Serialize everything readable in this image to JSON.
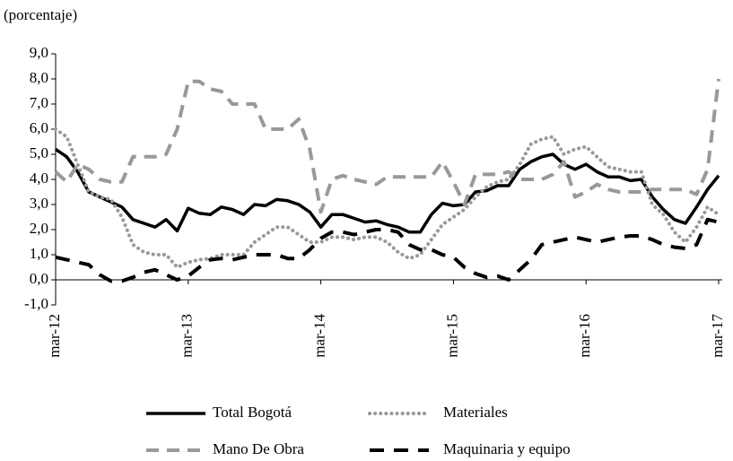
{
  "chart_data": {
    "type": "line",
    "unit_label": "(porcentaje)",
    "categories": [
      "mar-12",
      null,
      null,
      null,
      null,
      null,
      null,
      null,
      null,
      null,
      null,
      null,
      "mar-13",
      null,
      null,
      null,
      null,
      null,
      null,
      null,
      null,
      null,
      null,
      null,
      "mar-14",
      null,
      null,
      null,
      null,
      null,
      null,
      null,
      null,
      null,
      null,
      null,
      "mar-15",
      null,
      null,
      null,
      null,
      null,
      null,
      null,
      null,
      null,
      null,
      null,
      "mar-16",
      null,
      null,
      null,
      null,
      null,
      null,
      null,
      null,
      null,
      null,
      null,
      "mar-17"
    ],
    "ylim": [
      -1,
      9
    ],
    "yticks": [
      {
        "value": -1,
        "label": "-1,0"
      },
      {
        "value": 0,
        "label": "0,0"
      },
      {
        "value": 1,
        "label": "1,0"
      },
      {
        "value": 2,
        "label": "2,0"
      },
      {
        "value": 3,
        "label": "3,0"
      },
      {
        "value": 4,
        "label": "4,0"
      },
      {
        "value": 5,
        "label": "5,0"
      },
      {
        "value": 6,
        "label": "6,0"
      },
      {
        "value": 7,
        "label": "7,0"
      },
      {
        "value": 8,
        "label": "8,0"
      },
      {
        "value": 9,
        "label": "9,0"
      }
    ],
    "grid": false,
    "series": [
      {
        "name": "Total Bogotá",
        "color": "#000000",
        "style": "solid",
        "values": [
          5.2,
          4.9,
          4.3,
          3.5,
          3.3,
          3.1,
          2.9,
          2.4,
          2.25,
          2.1,
          2.4,
          1.95,
          2.85,
          2.65,
          2.6,
          2.9,
          2.8,
          2.6,
          3.0,
          2.95,
          3.2,
          3.15,
          3.0,
          2.7,
          2.1,
          2.6,
          2.6,
          2.45,
          2.3,
          2.35,
          2.2,
          2.1,
          1.9,
          1.9,
          2.6,
          3.05,
          2.95,
          3.0,
          3.5,
          3.55,
          3.75,
          3.75,
          4.4,
          4.7,
          4.9,
          5.0,
          4.6,
          4.4,
          4.6,
          4.3,
          4.1,
          4.1,
          3.95,
          4.0,
          3.3,
          2.8,
          2.4,
          2.25,
          2.9,
          3.6,
          4.15
        ]
      },
      {
        "name": "Materiales",
        "color": "#999999",
        "style": "dotted",
        "values": [
          6.0,
          5.7,
          4.6,
          3.5,
          3.3,
          3.2,
          2.5,
          1.4,
          1.1,
          1.0,
          1.0,
          0.5,
          0.7,
          0.8,
          0.85,
          1.0,
          1.0,
          1.0,
          1.5,
          1.8,
          2.1,
          2.1,
          1.8,
          1.5,
          1.5,
          1.7,
          1.7,
          1.6,
          1.7,
          1.7,
          1.5,
          1.1,
          0.85,
          1.0,
          1.6,
          2.2,
          2.5,
          2.8,
          3.3,
          3.7,
          3.9,
          4.0,
          4.6,
          5.4,
          5.6,
          5.7,
          5.0,
          5.2,
          5.3,
          4.9,
          4.5,
          4.4,
          4.3,
          4.3,
          3.0,
          2.6,
          1.9,
          1.5,
          2.1,
          2.9,
          2.6
        ]
      },
      {
        "name": "Mano De Obra",
        "color": "#999999",
        "style": "dashed",
        "values": [
          4.3,
          3.9,
          4.6,
          4.4,
          4.0,
          3.9,
          3.9,
          4.9,
          4.9,
          4.9,
          5.0,
          6.0,
          7.9,
          7.9,
          7.6,
          7.5,
          7.0,
          7.0,
          7.0,
          6.0,
          6.0,
          6.0,
          6.4,
          5.2,
          2.7,
          4.0,
          4.15,
          4.0,
          3.9,
          3.8,
          4.1,
          4.1,
          4.1,
          4.1,
          4.1,
          4.7,
          3.9,
          3.0,
          4.2,
          4.2,
          4.2,
          4.3,
          4.0,
          4.0,
          4.0,
          4.2,
          4.7,
          3.3,
          3.5,
          3.8,
          3.6,
          3.5,
          3.5,
          3.5,
          3.6,
          3.6,
          3.6,
          3.6,
          3.4,
          4.4,
          8.0
        ]
      },
      {
        "name": "Maquinaria y equipo",
        "color": "#000000",
        "style": "dashed",
        "values": [
          0.9,
          0.8,
          0.7,
          0.6,
          0.2,
          -0.05,
          -0.05,
          0.1,
          0.3,
          0.4,
          0.2,
          0.0,
          0.15,
          0.5,
          0.8,
          0.85,
          0.8,
          0.9,
          1.0,
          1.0,
          1.0,
          0.85,
          0.85,
          1.2,
          1.65,
          1.9,
          1.9,
          1.8,
          1.9,
          2.0,
          2.0,
          1.9,
          1.4,
          1.2,
          1.2,
          1.0,
          0.9,
          0.5,
          0.25,
          0.1,
          0.15,
          0.0,
          0.4,
          0.8,
          1.4,
          1.5,
          1.6,
          1.7,
          1.6,
          1.5,
          1.6,
          1.7,
          1.75,
          1.75,
          1.6,
          1.4,
          1.3,
          1.25,
          1.4,
          2.4,
          2.3
        ]
      }
    ]
  }
}
